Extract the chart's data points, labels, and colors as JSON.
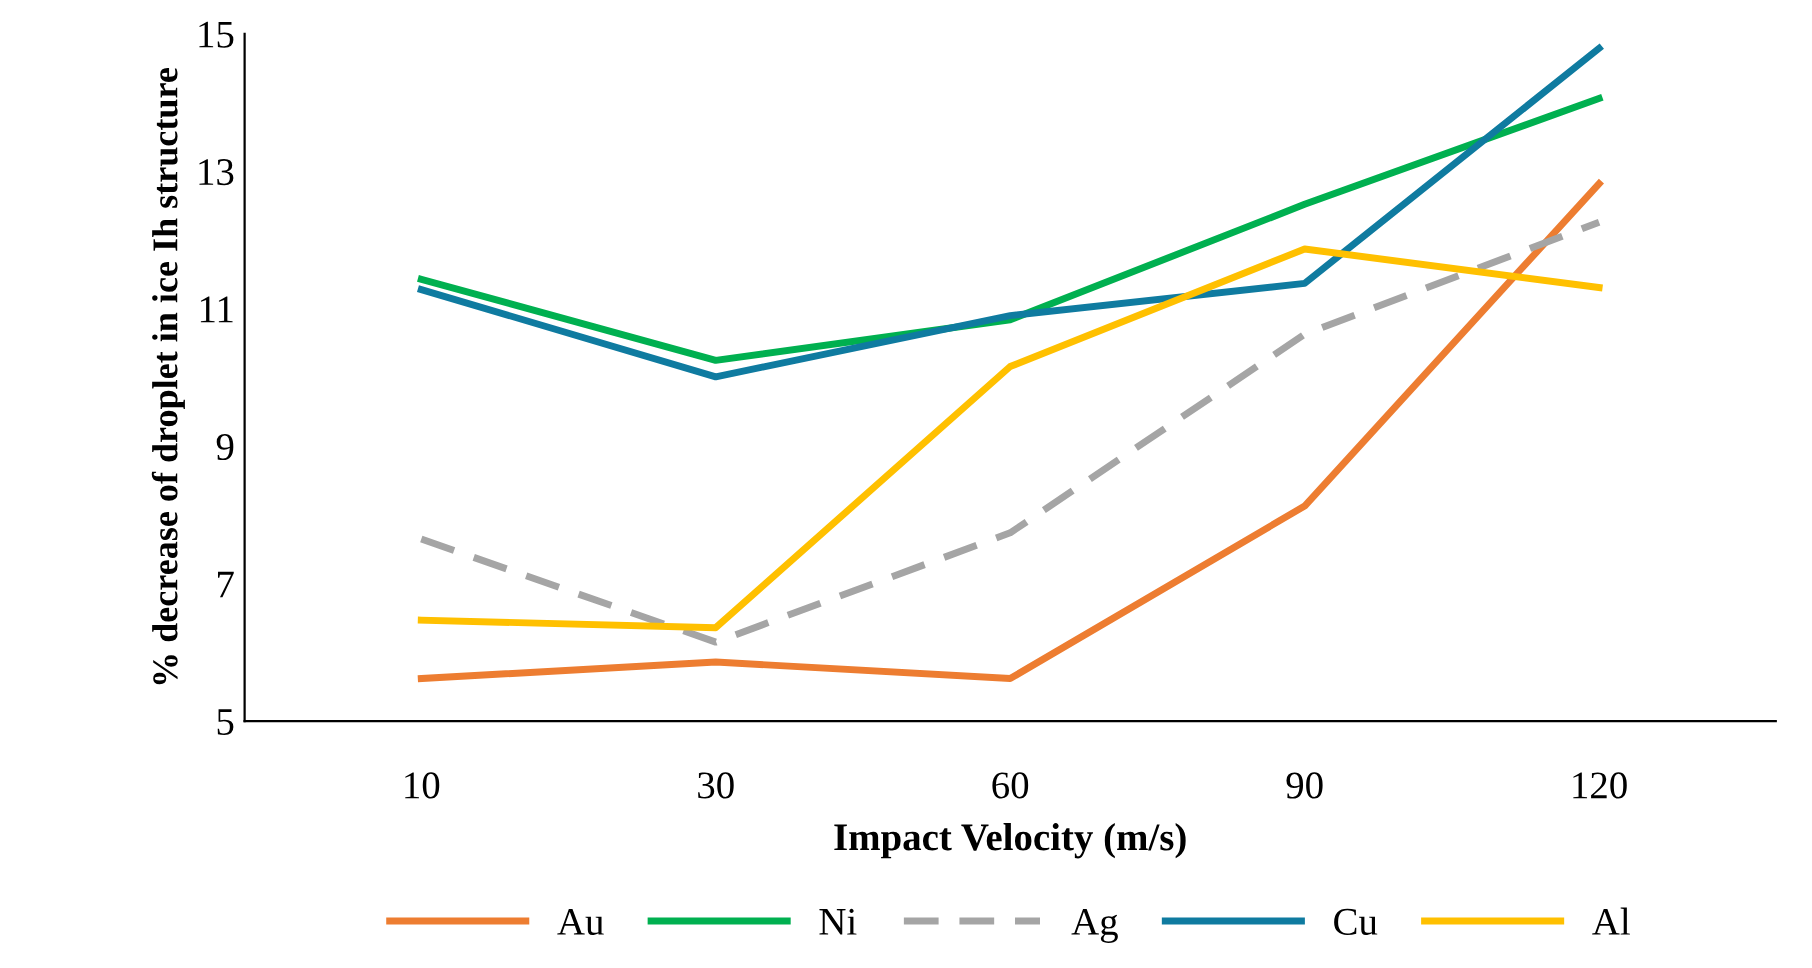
{
  "chart_data": {
    "type": "line",
    "xlabel": "Impact Velocity (m/s)",
    "ylabel": "% decrease of droplet in ice Ih structure",
    "categories": [
      "10",
      "30",
      "60",
      "90",
      "120"
    ],
    "series": [
      {
        "name": "Au",
        "color": "#ed7d31",
        "values": [
          5.62,
          5.86,
          5.62,
          8.13,
          12.82
        ]
      },
      {
        "name": "Ni",
        "color": "#00b050",
        "values": [
          11.43,
          10.25,
          10.84,
          12.52,
          14.06
        ]
      },
      {
        "name": "Ag",
        "color": "#a5a5a5",
        "line_style": "dashed",
        "values": [
          7.65,
          6.15,
          7.74,
          10.63,
          12.26
        ]
      },
      {
        "name": "Cu",
        "color": "#0f7ba0",
        "values": [
          11.28,
          10.01,
          10.9,
          11.37,
          14.79
        ]
      },
      {
        "name": "Al",
        "color": "#ffc000",
        "values": [
          6.47,
          6.36,
          10.16,
          11.87,
          11.31
        ]
      }
    ],
    "ylim": [
      5,
      15
    ],
    "yticks": [
      5,
      7,
      9,
      11,
      13,
      15
    ],
    "grid": false,
    "legend": "bottom",
    "marker": "none",
    "line_style": "solid"
  }
}
